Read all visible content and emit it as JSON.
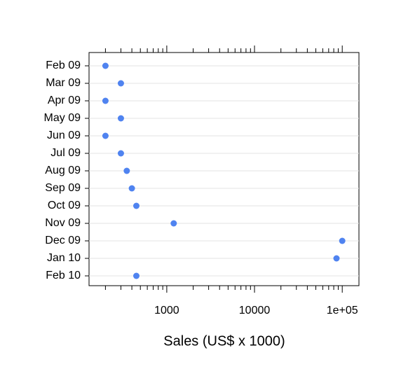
{
  "chart_data": {
    "type": "dot",
    "x_label": "Sales (US$ x 1000)",
    "categories": [
      "Feb 09",
      "Mar 09",
      "Apr 09",
      "May 09",
      "Jun 09",
      "Jul 09",
      "Aug 09",
      "Sep 09",
      "Oct 09",
      "Nov 09",
      "Dec 09",
      "Jan 10",
      "Feb 10"
    ],
    "values": [
      200,
      300,
      200,
      300,
      200,
      300,
      350,
      400,
      450,
      1200,
      100000,
      86000,
      450
    ],
    "color": "#4f83f0",
    "x_log": true,
    "xlim": [
      130,
      155000
    ],
    "xticks": [
      1000,
      10000,
      {
        "value": 100000,
        "label": "1e+05"
      }
    ],
    "minor_xticks": [
      200,
      300,
      400,
      500,
      600,
      700,
      800,
      900,
      2000,
      3000,
      4000,
      5000,
      6000,
      7000,
      8000,
      9000,
      20000,
      30000,
      40000,
      50000,
      60000,
      70000,
      80000,
      90000
    ],
    "grid": true
  }
}
